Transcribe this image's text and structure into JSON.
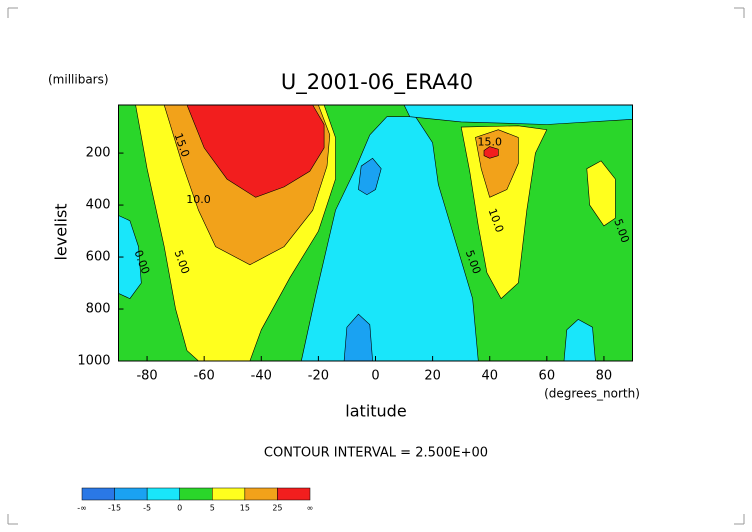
{
  "chart_data": {
    "type": "contour",
    "title": "U_2001-06_ERA40",
    "y_unit": "(millibars)",
    "y_label": "levelist",
    "x_label": "latitude",
    "x_unit": "(degrees_north)",
    "annotation": "CONTOUR INTERVAL = 2.500E+00",
    "xlim": [
      -90,
      90
    ],
    "xticks": [
      -80,
      -60,
      -40,
      -20,
      0,
      20,
      40,
      60,
      80
    ],
    "ylim": [
      1000,
      15
    ],
    "yticks": [
      200,
      400,
      600,
      800,
      1000
    ],
    "contour_labels": [
      "15.0",
      "10.0",
      "5.00",
      "0.00",
      "15.0",
      "10.0",
      "5.00",
      "5.00"
    ],
    "colorbar": {
      "low_label": "-∞",
      "bounds": [
        -15,
        -5,
        0,
        5,
        15,
        25
      ],
      "high_label": "∞",
      "colors": [
        "#2a78e6",
        "#1aa2f2",
        "#19e6fa",
        "#2ad62a",
        "#ffff1e",
        "#f2a21a",
        "#f21e1e"
      ]
    }
  }
}
